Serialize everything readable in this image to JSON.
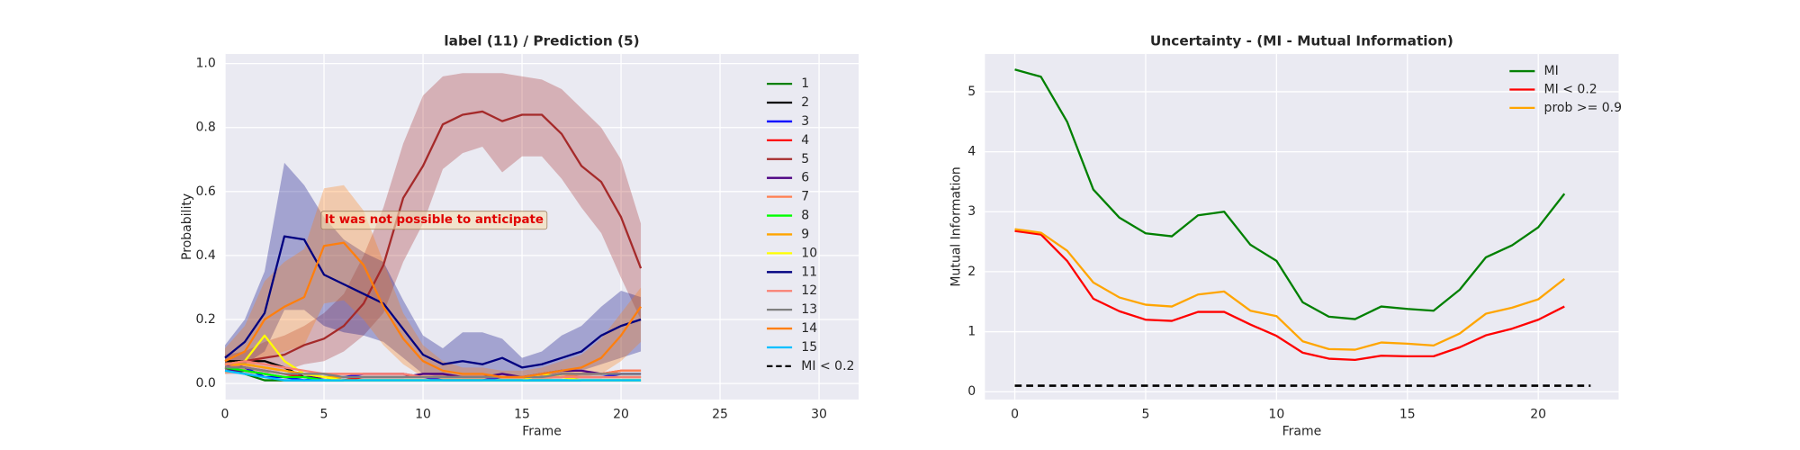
{
  "chart_data": [
    {
      "type": "line",
      "title": "label (11) / Prediction (5)",
      "x_label": "Frame",
      "y_label": "Probability",
      "x": [
        0,
        1,
        2,
        3,
        4,
        5,
        6,
        7,
        8,
        9,
        10,
        11,
        12,
        13,
        14,
        15,
        16,
        17,
        18,
        19,
        20,
        21
      ],
      "xlim": [
        0,
        32
      ],
      "xticks": [
        0,
        5,
        10,
        15,
        20,
        25,
        30
      ],
      "ylim": [
        -0.05,
        1.03
      ],
      "yticks": [
        {
          "value": 0,
          "label": "0.0"
        },
        {
          "value": 0.2,
          "label": "0.2"
        },
        {
          "value": 0.4,
          "label": "0.4"
        },
        {
          "value": 0.6,
          "label": "0.6"
        },
        {
          "value": 0.8,
          "label": "0.8"
        },
        {
          "value": 1.0,
          "label": "1.0"
        }
      ],
      "grid": true,
      "legend": "upper right",
      "annotation": "It was not possible to anticipate",
      "series": [
        {
          "name": "1",
          "color": "#008000",
          "values": [
            0.05,
            0.03,
            0.01,
            0.01,
            0.01,
            0.01,
            0.01,
            0.01,
            0.01,
            0.01,
            0.01,
            0.01,
            0.01,
            0.01,
            0.01,
            0.01,
            0.01,
            0.01,
            0.01,
            0.01,
            0.01,
            0.01
          ]
        },
        {
          "name": "2",
          "color": "#000000",
          "values": [
            0.07,
            0.07,
            0.07,
            0.05,
            0.02,
            0.02,
            0.02,
            0.02,
            0.02,
            0.02,
            0.02,
            0.02,
            0.02,
            0.02,
            0.02,
            0.02,
            0.02,
            0.02,
            0.02,
            0.02,
            0.02,
            0.02
          ]
        },
        {
          "name": "3",
          "color": "#0000ff",
          "values": [
            0.06,
            0.05,
            0.02,
            0.02,
            0.01,
            0.02,
            0.02,
            0.03,
            0.03,
            0.03,
            0.02,
            0.01,
            0.01,
            0.01,
            0.02,
            0.02,
            0.02,
            0.02,
            0.02,
            0.02,
            0.03,
            0.03
          ]
        },
        {
          "name": "4",
          "color": "#ff0000",
          "values": [
            0.05,
            0.05,
            0.04,
            0.03,
            0.02,
            0.02,
            0.01,
            0.02,
            0.02,
            0.02,
            0.02,
            0.02,
            0.02,
            0.02,
            0.02,
            0.02,
            0.02,
            0.03,
            0.03,
            0.03,
            0.04,
            0.04
          ]
        },
        {
          "name": "5",
          "color": "#a52a2a",
          "values": [
            0.06,
            0.07,
            0.08,
            0.09,
            0.12,
            0.14,
            0.18,
            0.25,
            0.37,
            0.58,
            0.68,
            0.81,
            0.84,
            0.85,
            0.82,
            0.84,
            0.84,
            0.78,
            0.68,
            0.63,
            0.52,
            0.36
          ],
          "lower": [
            0.03,
            0.03,
            0.03,
            0.04,
            0.06,
            0.07,
            0.1,
            0.15,
            0.22,
            0.38,
            0.5,
            0.67,
            0.72,
            0.74,
            0.66,
            0.71,
            0.71,
            0.64,
            0.55,
            0.47,
            0.33,
            0.2
          ],
          "upper": [
            0.09,
            0.1,
            0.13,
            0.15,
            0.18,
            0.22,
            0.28,
            0.4,
            0.55,
            0.75,
            0.9,
            0.96,
            0.97,
            0.97,
            0.97,
            0.96,
            0.95,
            0.92,
            0.86,
            0.8,
            0.7,
            0.5
          ]
        },
        {
          "name": "6",
          "color": "#4b0082",
          "values": [
            0.04,
            0.04,
            0.03,
            0.02,
            0.02,
            0.02,
            0.02,
            0.02,
            0.02,
            0.02,
            0.03,
            0.03,
            0.02,
            0.02,
            0.03,
            0.02,
            0.03,
            0.04,
            0.04,
            0.03,
            0.03,
            0.03
          ]
        },
        {
          "name": "7",
          "color": "#ff7f50",
          "values": [
            0.05,
            0.06,
            0.05,
            0.04,
            0.03,
            0.03,
            0.03,
            0.03,
            0.03,
            0.03,
            0.02,
            0.02,
            0.02,
            0.02,
            0.02,
            0.02,
            0.02,
            0.02,
            0.03,
            0.03,
            0.04,
            0.04
          ]
        },
        {
          "name": "8",
          "color": "#00ff00",
          "values": [
            0.05,
            0.04,
            0.03,
            0.02,
            0.02,
            0.01,
            0.01,
            0.01,
            0.01,
            0.01,
            0.01,
            0.01,
            0.01,
            0.01,
            0.01,
            0.01,
            0.01,
            0.01,
            0.01,
            0.01,
            0.01,
            0.01
          ]
        },
        {
          "name": "9",
          "color": "#ffa500",
          "values": [
            0.06,
            0.06,
            0.05,
            0.04,
            0.03,
            0.02,
            0.02,
            0.02,
            0.02,
            0.02,
            0.02,
            0.02,
            0.02,
            0.02,
            0.02,
            0.02,
            0.02,
            0.02,
            0.02,
            0.02,
            0.02,
            0.02
          ]
        },
        {
          "name": "10",
          "color": "#ffff00",
          "values": [
            0.06,
            0.07,
            0.15,
            0.07,
            0.03,
            0.02,
            0.01,
            0.01,
            0.01,
            0.01,
            0.01,
            0.01,
            0.01,
            0.01,
            0.01,
            0.01,
            0.03,
            0.02,
            0.01,
            0.01,
            0.01,
            0.01
          ]
        },
        {
          "name": "11",
          "color": "#000080",
          "values": [
            0.08,
            0.13,
            0.22,
            0.46,
            0.45,
            0.34,
            0.31,
            0.28,
            0.25,
            0.17,
            0.09,
            0.06,
            0.07,
            0.06,
            0.08,
            0.05,
            0.06,
            0.08,
            0.1,
            0.15,
            0.18,
            0.2
          ],
          "lower": [
            0.04,
            0.06,
            0.1,
            0.23,
            0.23,
            0.18,
            0.16,
            0.15,
            0.13,
            0.08,
            0.03,
            0.02,
            0.02,
            0.02,
            0.03,
            0.02,
            0.02,
            0.03,
            0.04,
            0.06,
            0.08,
            0.1
          ],
          "upper": [
            0.12,
            0.2,
            0.35,
            0.69,
            0.62,
            0.52,
            0.45,
            0.41,
            0.38,
            0.26,
            0.15,
            0.11,
            0.16,
            0.16,
            0.14,
            0.08,
            0.1,
            0.15,
            0.18,
            0.24,
            0.29,
            0.27
          ]
        },
        {
          "name": "12",
          "color": "#fa8072",
          "values": [
            0.06,
            0.07,
            0.06,
            0.05,
            0.04,
            0.03,
            0.03,
            0.03,
            0.03,
            0.03,
            0.02,
            0.02,
            0.02,
            0.02,
            0.02,
            0.02,
            0.02,
            0.02,
            0.02,
            0.02,
            0.02,
            0.02
          ]
        },
        {
          "name": "13",
          "color": "#808080",
          "values": [
            0.05,
            0.05,
            0.04,
            0.03,
            0.03,
            0.03,
            0.02,
            0.02,
            0.02,
            0.02,
            0.02,
            0.02,
            0.02,
            0.02,
            0.02,
            0.02,
            0.02,
            0.03,
            0.03,
            0.03,
            0.03,
            0.03
          ]
        },
        {
          "name": "14",
          "color": "#ff7f0e",
          "values": [
            0.07,
            0.1,
            0.2,
            0.24,
            0.27,
            0.43,
            0.44,
            0.37,
            0.24,
            0.14,
            0.07,
            0.04,
            0.03,
            0.03,
            0.02,
            0.02,
            0.03,
            0.04,
            0.05,
            0.08,
            0.15,
            0.24
          ],
          "lower": [
            0.03,
            0.04,
            0.08,
            0.1,
            0.12,
            0.25,
            0.26,
            0.2,
            0.12,
            0.06,
            0.02,
            0.01,
            0.01,
            0.01,
            0.01,
            0.01,
            0.01,
            0.02,
            0.02,
            0.03,
            0.07,
            0.13
          ],
          "upper": [
            0.11,
            0.18,
            0.32,
            0.38,
            0.42,
            0.61,
            0.62,
            0.54,
            0.38,
            0.22,
            0.12,
            0.07,
            0.05,
            0.05,
            0.04,
            0.04,
            0.05,
            0.07,
            0.09,
            0.14,
            0.22,
            0.3
          ]
        },
        {
          "name": "15",
          "color": "#00bfff",
          "values": [
            0.04,
            0.03,
            0.02,
            0.01,
            0.01,
            0.01,
            0.01,
            0.01,
            0.01,
            0.01,
            0.01,
            0.01,
            0.01,
            0.01,
            0.01,
            0.01,
            0.01,
            0.01,
            0.01,
            0.01,
            0.01,
            0.01
          ]
        }
      ],
      "legend_extra": {
        "name": "MI < 0.2",
        "color": "#000000",
        "style": "dashed"
      }
    },
    {
      "type": "line",
      "title": "Uncertainty - (MI - Mutual Information)",
      "x_label": "Frame",
      "y_label": "Mutual Information",
      "x": [
        0,
        1,
        2,
        3,
        4,
        5,
        6,
        7,
        8,
        9,
        10,
        11,
        12,
        13,
        14,
        15,
        16,
        17,
        18,
        19,
        20,
        21
      ],
      "xlim": [
        -1.14,
        23.07
      ],
      "xticks": [
        0,
        5,
        10,
        15,
        20
      ],
      "ylim": [
        -0.13,
        5.63
      ],
      "yticks": [
        0,
        1,
        2,
        3,
        4,
        5
      ],
      "grid": true,
      "legend": "upper right",
      "series": [
        {
          "name": "MI",
          "color": "#008000",
          "values": [
            5.37,
            5.25,
            4.5,
            3.37,
            2.9,
            2.64,
            2.59,
            2.94,
            3.0,
            2.45,
            2.18,
            1.49,
            1.25,
            1.21,
            1.42,
            1.38,
            1.35,
            1.7,
            2.24,
            2.44,
            2.74,
            3.3
          ]
        },
        {
          "name": "MI < 0.2",
          "color": "#ff0000",
          "values": [
            2.68,
            2.62,
            2.18,
            1.55,
            1.34,
            1.2,
            1.18,
            1.33,
            1.33,
            1.12,
            0.93,
            0.65,
            0.55,
            0.53,
            0.6,
            0.59,
            0.59,
            0.74,
            0.94,
            1.05,
            1.2,
            1.42
          ]
        },
        {
          "name": "prob >= 0.9",
          "color": "#ffa500",
          "values": [
            2.71,
            2.65,
            2.35,
            1.82,
            1.57,
            1.45,
            1.42,
            1.62,
            1.67,
            1.35,
            1.26,
            0.84,
            0.71,
            0.7,
            0.82,
            0.8,
            0.77,
            0.97,
            1.3,
            1.4,
            1.54,
            1.88
          ]
        }
      ],
      "reference_line": {
        "y": 0.1,
        "x": [
          0,
          22
        ],
        "color": "#000000",
        "style": "dashed"
      }
    }
  ]
}
